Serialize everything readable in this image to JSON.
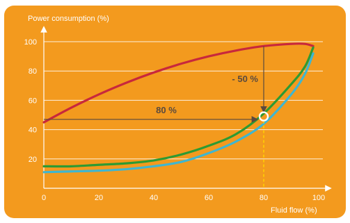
{
  "chart_data": {
    "type": "line",
    "ylabel": "Power consumption (%)",
    "xlabel": "Fluid flow (%)",
    "xlim": [
      0,
      100
    ],
    "ylim": [
      0,
      100
    ],
    "x_ticks": [
      "0",
      "20",
      "40",
      "60",
      "80",
      "100"
    ],
    "y_ticks": [
      "20",
      "40",
      "60",
      "80",
      "100"
    ],
    "grid": "horizontal",
    "x": [
      0,
      10,
      20,
      30,
      40,
      50,
      60,
      70,
      80,
      90,
      95,
      98
    ],
    "series": [
      {
        "color": "#c8283c",
        "values": [
          45,
          55,
          64,
          72,
          79,
          85,
          90,
          94,
          97,
          98.5,
          98.5,
          97
        ]
      },
      {
        "color": "#2e9a33",
        "values": [
          15,
          15,
          16,
          17,
          19,
          23,
          29,
          37,
          51,
          71,
          83,
          96
        ]
      },
      {
        "color": "#3fb6d0",
        "values": [
          11,
          11.5,
          12,
          13,
          15,
          18,
          24,
          32,
          44,
          64,
          78,
          92
        ]
      }
    ],
    "annotations": [
      {
        "text": "80 %",
        "type": "horizontal-arrow",
        "y": 47,
        "x_from": 0,
        "x_to": 80
      },
      {
        "text": "- 50 %",
        "type": "vertical-arrow",
        "x": 80,
        "y_from": 97,
        "y_to": 52
      }
    ],
    "marker": {
      "x": 80,
      "y": 49,
      "dashed_drop_to_axis": true
    }
  },
  "colors": {
    "background": "#f39a1e",
    "axis": "#ffffff",
    "annotation_arrow": "#5a4a3e",
    "dashed_guide": "#ffd200"
  }
}
